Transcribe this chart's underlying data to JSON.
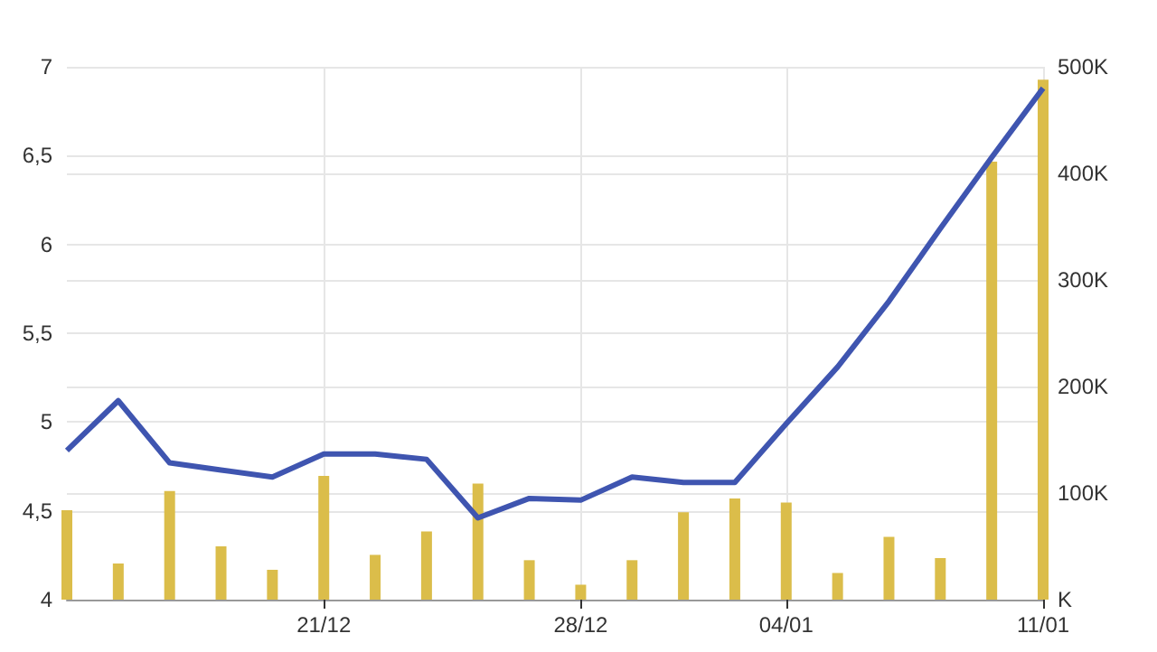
{
  "chart_data": {
    "type": "line",
    "categories": [
      null,
      null,
      null,
      null,
      null,
      "21/12",
      null,
      null,
      null,
      null,
      "28/12",
      null,
      null,
      null,
      "04/01",
      null,
      null,
      null,
      null,
      "11/01"
    ],
    "series": [
      {
        "type": "bar",
        "axis": "y2",
        "color": "#dbbd4a",
        "values": [
          84,
          34,
          102,
          50,
          28,
          116,
          42,
          64,
          109,
          37,
          14,
          37,
          82,
          95,
          91,
          25,
          59,
          39,
          411,
          488
        ]
      },
      {
        "color": "#3f55b0",
        "values": [
          4.84,
          5.12,
          4.77,
          4.73,
          4.69,
          4.82,
          4.82,
          4.79,
          4.46,
          4.57,
          4.56,
          4.69,
          4.66,
          4.66,
          4.99,
          5.31,
          5.68,
          6.09,
          6.49,
          6.88
        ]
      }
    ],
    "ylim": [
      4,
      7
    ],
    "yticks": [
      4,
      {
        "value": 4.5,
        "label": "4,5"
      },
      5,
      {
        "value": 5.5,
        "label": "5,5"
      },
      6,
      {
        "value": 6.5,
        "label": "6,5"
      },
      7
    ],
    "y2lim": [
      0,
      500
    ],
    "y2ticks": [
      {
        "value": 0,
        "label": "K"
      },
      {
        "value": 100,
        "label": "100K"
      },
      {
        "value": 200,
        "label": "200K"
      },
      {
        "value": 300,
        "label": "300K"
      },
      {
        "value": 400,
        "label": "400K"
      },
      {
        "value": 500,
        "label": "500K"
      }
    ],
    "grid": true,
    "marker": "none"
  }
}
